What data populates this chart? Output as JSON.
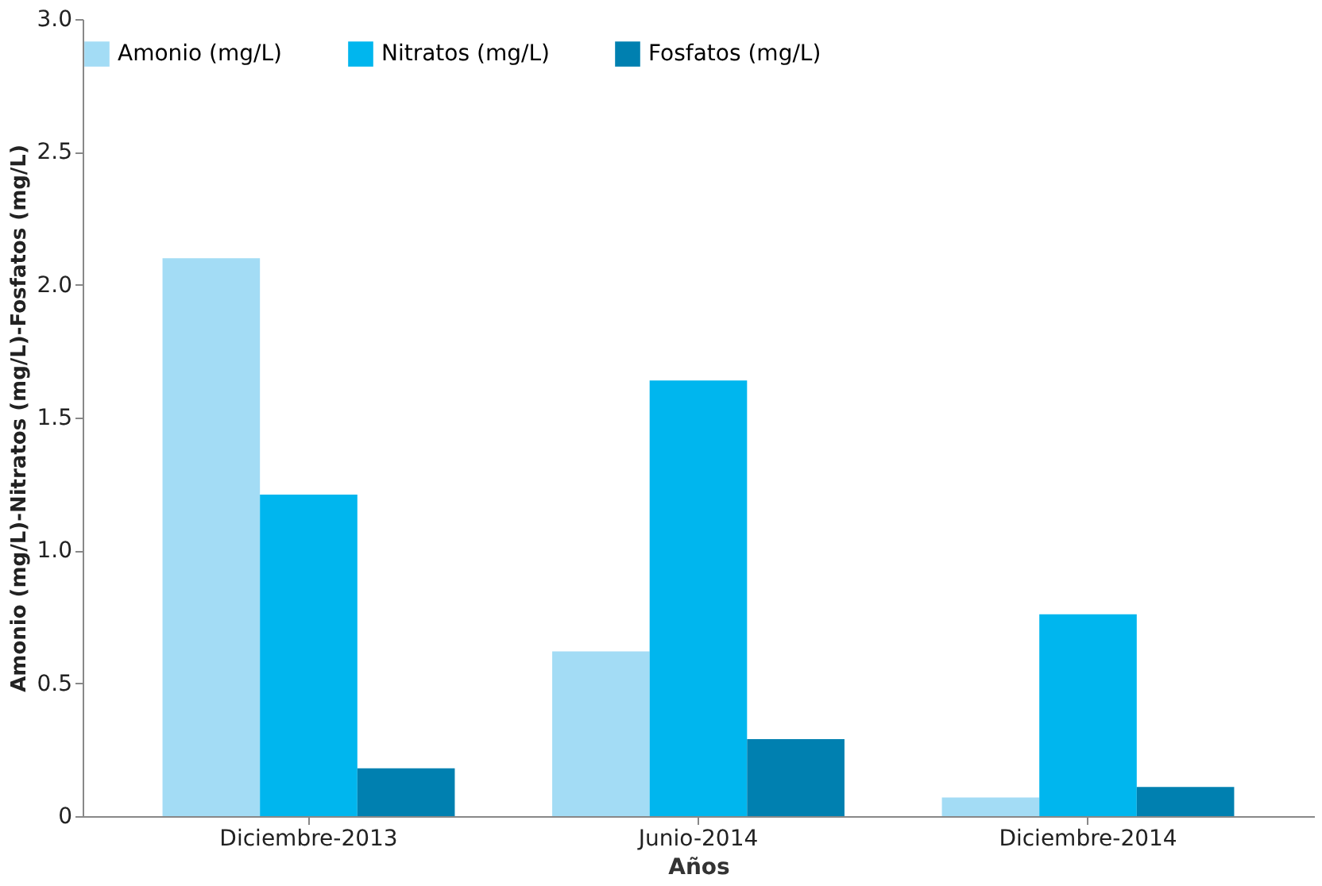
{
  "chart_data": {
    "type": "bar",
    "xlabel": "Años",
    "ylabel": "Amonio (mg/L)-Nitratos (mg/L)-Fosfatos (mg/L)",
    "categories": [
      "Diciembre-2013",
      "Junio-2014",
      "Diciembre-2014"
    ],
    "series": [
      {
        "name": "Amonio (mg/L)",
        "color": "#a3dcf5",
        "values": [
          2.1,
          0.62,
          0.07
        ]
      },
      {
        "name": "Nitratos (mg/L)",
        "color": "#00b6ee",
        "values": [
          1.21,
          1.64,
          0.76
        ]
      },
      {
        "name": "Fosfatos (mg/L)",
        "color": "#0080b0",
        "values": [
          0.18,
          0.29,
          0.11
        ]
      }
    ],
    "ylim": [
      0,
      3.0
    ],
    "yticks": [
      0,
      {
        "value": 0.5,
        "label": "0.5"
      },
      {
        "value": 1,
        "label": "1.0"
      },
      {
        "value": 1.5,
        "label": "1.5"
      },
      {
        "value": 2,
        "label": "2.0"
      },
      {
        "value": 2.5,
        "label": "2.5"
      },
      {
        "value": 3,
        "label": "3.0"
      }
    ],
    "grid": false,
    "legend": "top"
  }
}
